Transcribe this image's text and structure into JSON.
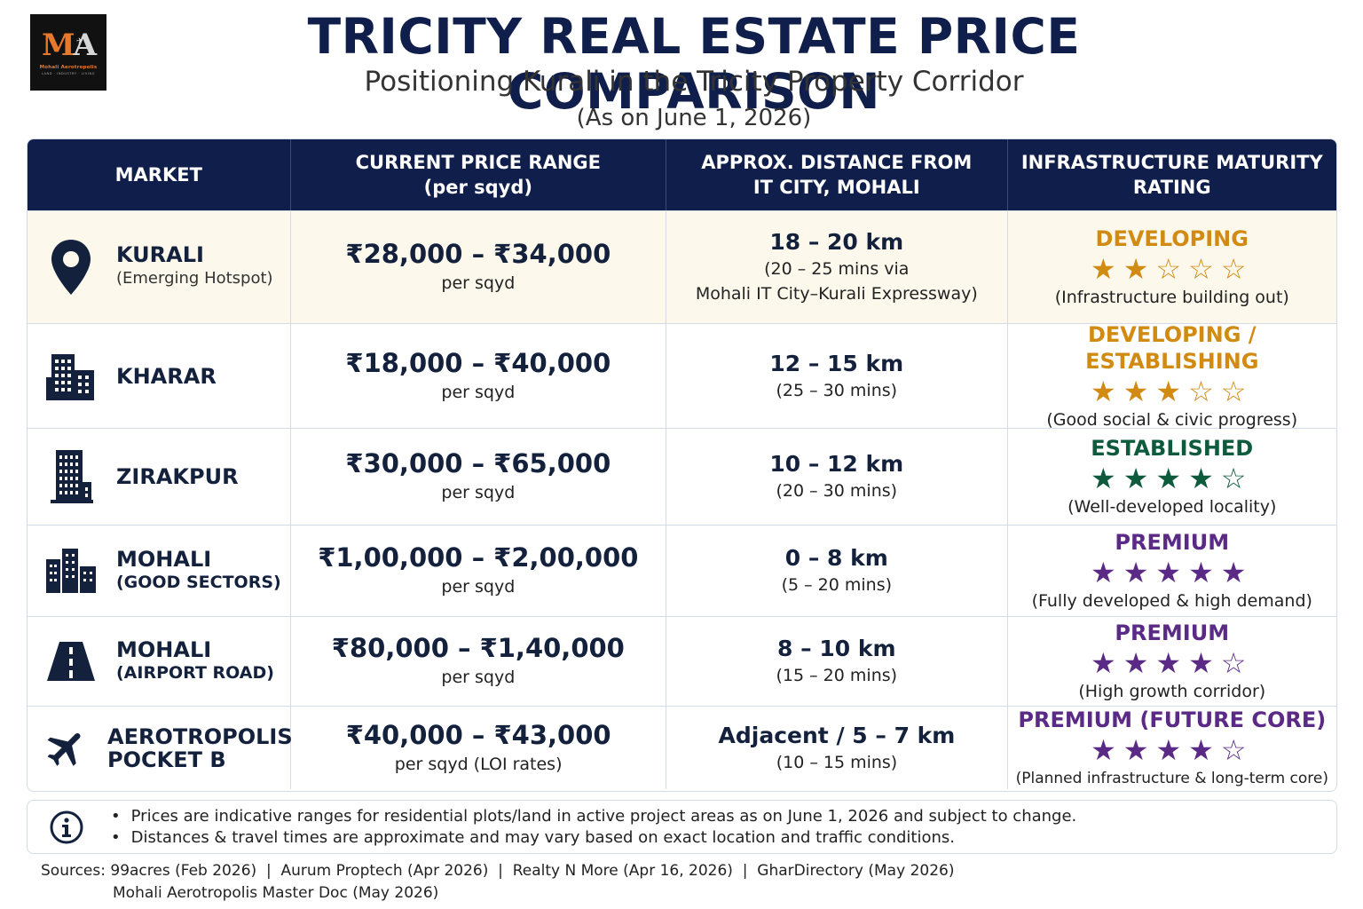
{
  "logo": {
    "mark_m": "M",
    "mark_a": "A",
    "name": "Mohali Aerotropolis",
    "tagline": "LAND · INDUSTRY · LIVING",
    "icon": "plane-icon"
  },
  "header": {
    "title": "TRICITY REAL ESTATE PRICE COMPARISON",
    "subtitle": "Positioning Kurali in the Tricity Property Corridor",
    "as_of": "(As on June 1, 2026)"
  },
  "table": {
    "columns": {
      "market": "MARKET",
      "price_l1": "CURRENT PRICE RANGE",
      "price_l2": "(per sqyd)",
      "dist_l1": "APPROX. DISTANCE FROM",
      "dist_l2": "IT CITY, MOHALI",
      "rating_l1": "INFRASTRUCTURE MATURITY",
      "rating_l2": "RATING"
    },
    "rows": [
      {
        "name": "KURALI",
        "sub": "(Emerging Hotspot)",
        "icon": "location-pin-icon",
        "price": "₹28,000 – ₹34,000",
        "price_note": "per sqyd",
        "distance": "18 – 20 km",
        "dist_note_1": "(20 – 25 mins via",
        "dist_note_2": "Mohali IT City–Kurali Expressway)",
        "rating_label": "DEVELOPING",
        "stars_filled": "★★",
        "stars_empty": "☆☆☆",
        "rating_stars": 2,
        "rating_note": "(Infrastructure building out)",
        "color": "#d18a12"
      },
      {
        "name": "KHARAR",
        "icon": "buildings-icon",
        "price": "₹18,000 – ₹40,000",
        "price_note": "per sqyd",
        "distance": "12 – 15 km",
        "dist_note_1": "(25 – 30 mins)",
        "rating_label": "DEVELOPING / ESTABLISHING",
        "stars_filled": "★★★",
        "stars_empty": "☆☆",
        "rating_stars": 3,
        "rating_note": "(Good social & civic progress)",
        "color": "#d18a12"
      },
      {
        "name": "ZIRAKPUR",
        "icon": "tower-icon",
        "price": "₹30,000 – ₹65,000",
        "price_note": "per sqyd",
        "distance": "10 – 12 km",
        "dist_note_1": "(20 – 30 mins)",
        "rating_label": "ESTABLISHED",
        "stars_filled": "★★★★",
        "stars_empty": "☆",
        "rating_stars": 4,
        "rating_note": "(Well-developed locality)",
        "color": "#0e5a3c"
      },
      {
        "name": "MOHALI",
        "sub": "(GOOD SECTORS)",
        "icon": "city-skyline-icon",
        "price": "₹1,00,000 – ₹2,00,000",
        "price_note": "per sqyd",
        "distance": "0 – 8 km",
        "dist_note_1": "(5 – 20 mins)",
        "rating_label": "PREMIUM",
        "stars_filled": "★★★★★",
        "stars_empty": "",
        "rating_stars": 5,
        "rating_note": "(Fully developed & high demand)",
        "color": "#5b2a86"
      },
      {
        "name": "MOHALI",
        "sub": "(AIRPORT ROAD)",
        "icon": "road-icon",
        "price": "₹80,000 – ₹1,40,000",
        "price_note": "per sqyd",
        "distance": "8 – 10 km",
        "dist_note_1": "(15 – 20 mins)",
        "rating_label": "PREMIUM",
        "stars_filled": "★★★★",
        "stars_empty": "☆",
        "rating_stars": 4,
        "rating_note": "(High growth corridor)",
        "color": "#5b2a86"
      },
      {
        "name": "AEROTROPOLIS",
        "sub": "POCKET B",
        "icon": "airplane-icon",
        "price": "₹40,000 – ₹43,000",
        "price_note": "per sqyd (LOI rates)",
        "distance": "Adjacent / 5 – 7 km",
        "dist_note_1": "(10 – 15 mins)",
        "rating_label": "PREMIUM (FUTURE CORE)",
        "stars_filled": "★★★★",
        "stars_empty": "☆",
        "rating_stars": 4,
        "rating_note": "(Planned infrastructure & long-term core)",
        "color": "#5b2a86"
      }
    ]
  },
  "notes": {
    "icon": "info-icon",
    "items": [
      "Prices are indicative ranges for residential plots/land in active project areas as on June 1, 2026 and subject to change.",
      "Distances & travel times are approximate and may vary based on exact location and traffic conditions."
    ]
  },
  "sources": {
    "line1": "Sources: 99acres (Feb 2026)  |  Aurum Proptech (Apr 2026)  |  Realty N More (Apr 16, 2026)  |  GharDirectory (May 2026)",
    "line2": "Mohali Aerotropolis Master Doc (May 2026)"
  }
}
